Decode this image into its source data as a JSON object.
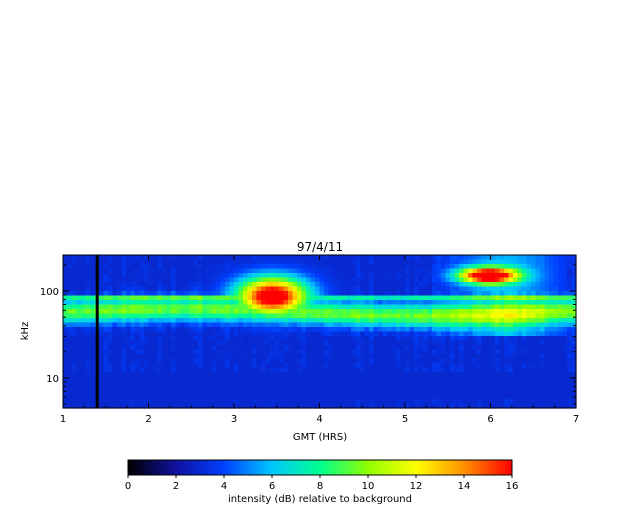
{
  "chart_data": {
    "type": "heatmap",
    "title": "97/4/11",
    "xlabel": "GMT (HRS)",
    "ylabel": "kHz",
    "xlim": [
      1,
      7
    ],
    "ylim": [
      4.5,
      260
    ],
    "yscale": "log",
    "xticks": [
      1,
      2,
      3,
      4,
      5,
      6,
      7
    ],
    "yticks": [
      10,
      100
    ],
    "colorbar": {
      "label": "intensity (dB) relative to background",
      "min": 0,
      "max": 16,
      "ticks": [
        0,
        2,
        4,
        6,
        8,
        10,
        12,
        14,
        16
      ],
      "colormap": [
        "#000000",
        "#1010a0",
        "#0040ff",
        "#00c8ff",
        "#00ff90",
        "#90ff00",
        "#ffff00",
        "#ff9000",
        "#ff0000"
      ]
    },
    "features": {
      "data_gap_hours": 1.4,
      "continuum_band_khz": [
        38,
        85
      ],
      "burst_events": [
        {
          "start_hr": 3.0,
          "end_hr": 3.9,
          "freq_khz": [
            50,
            150
          ],
          "peak_db": 16
        },
        {
          "start_hr": 5.6,
          "end_hr": 6.35,
          "freq_khz": [
            120,
            190
          ],
          "peak_db": 16
        }
      ],
      "background_db": 3
    }
  }
}
